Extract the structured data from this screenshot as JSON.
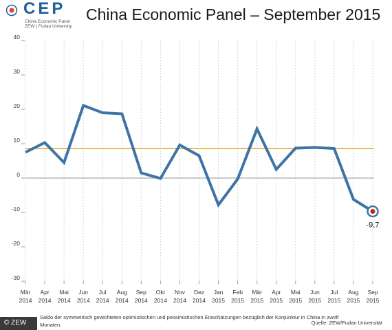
{
  "header": {
    "logo_name": "CEP",
    "logo_line1": "China Economic Panel",
    "logo_line2": "ZEW | Fudan University",
    "title": "China Economic Panel – September 2015"
  },
  "footer": {
    "note_line1": "Saldo der symmetrisch gewichteten optimistischen und pessimistischen Einschätzungen bezüglich der Konjunktur in China in zwölf",
    "note_line2": "Monaten.",
    "source": "Quelle: ZEW/Fudan Universität",
    "copyright": "© ZEW"
  },
  "colors": {
    "series": "#3e74a5",
    "mean_line": "#e0a51b",
    "zero_line": "#aaaaaa",
    "end_marker": "#c0281b"
  },
  "chart_data": {
    "type": "line",
    "categories": [
      "Mär 2014",
      "Apr 2014",
      "Mai 2014",
      "Jun 2014",
      "Jul 2014",
      "Aug 2014",
      "Sep 2014",
      "Okt 2014",
      "Nov 2014",
      "Dez 2014",
      "Jan 2015",
      "Feb 2015",
      "Mär 2015",
      "Apr 2015",
      "Mai 2015",
      "Jun 2015",
      "Jul 2015",
      "Aug 2015",
      "Sep 2015"
    ],
    "x_tick_labels": [
      [
        "Mär",
        "2014"
      ],
      [
        "Apr",
        "2014"
      ],
      [
        "Mai",
        "2014"
      ],
      [
        "Jun",
        "2014"
      ],
      [
        "Jul",
        "2014"
      ],
      [
        "Aug",
        "2014"
      ],
      [
        "Sep",
        "2014"
      ],
      [
        "Okt",
        "2014"
      ],
      [
        "Nov",
        "2014"
      ],
      [
        "Dez",
        "2014"
      ],
      [
        "Jan",
        "2015"
      ],
      [
        "Feb",
        "2015"
      ],
      [
        "Mär",
        "2015"
      ],
      [
        "Apr",
        "2015"
      ],
      [
        "Mai",
        "2015"
      ],
      [
        "Jun",
        "2015"
      ],
      [
        "Jul",
        "2015"
      ],
      [
        "Aug",
        "2015"
      ],
      [
        "Sep",
        "2015"
      ]
    ],
    "series": [
      {
        "values": [
          7.5,
          10.3,
          4.5,
          21.1,
          19.0,
          18.7,
          1.5,
          -0.1,
          9.6,
          6.5,
          -7.8,
          -0.3,
          14.3,
          2.5,
          8.7,
          8.9,
          8.6,
          -6.2,
          -9.7
        ]
      }
    ],
    "reference_lines": [
      {
        "value": 8.6,
        "color": "#e0a51b"
      },
      {
        "value": 0,
        "color": "#aaaaaa"
      }
    ],
    "y_ticks": [
      "40",
      "30",
      "20",
      "10",
      "0",
      "-10",
      "-20",
      "-30"
    ],
    "ylim": [
      -30,
      40
    ],
    "grid": "vertical dotted",
    "end_label": "-9,7",
    "title": "China Economic Panel – September 2015"
  }
}
